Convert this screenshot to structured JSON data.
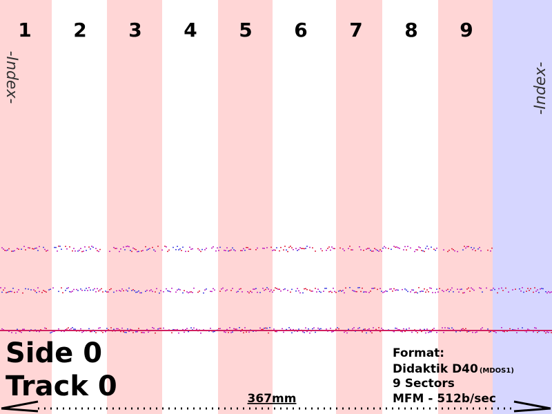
{
  "sectors": [
    "1",
    "2",
    "3",
    "4",
    "5",
    "6",
    "7",
    "8",
    "9"
  ],
  "index_left": "-Index-",
  "index_right": "-Index-",
  "side": "Side 0",
  "track": "Track 0",
  "length": "367mm",
  "format": {
    "heading": "Format:",
    "name": "Didaktik D40",
    "variant": "(MDOS1)",
    "sectors": "9 Sectors",
    "encoding": "MFM - 512b/sec"
  }
}
